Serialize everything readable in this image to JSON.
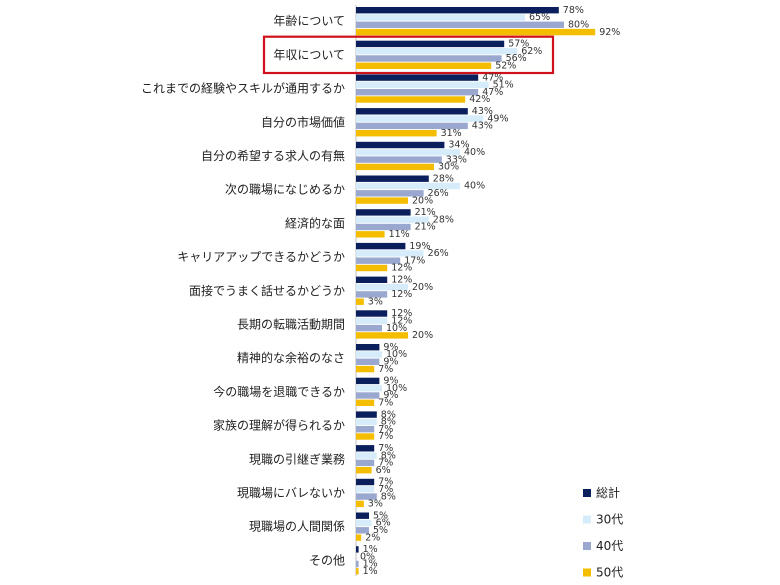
{
  "chart_data": {
    "type": "bar",
    "orientation": "horizontal",
    "title": "",
    "xlabel": "",
    "ylabel": "",
    "xlim": [
      0,
      100
    ],
    "grid": false,
    "legend_position": "bottom-right",
    "highlighted_category": "年収について",
    "highlight_color": "#d0101a",
    "categories": [
      "年齢について",
      "年収について",
      "これまでの経験やスキルが通用するか",
      "自分の市場価値",
      "自分の希望する求人の有無",
      "次の職場になじめるか",
      "経済的な面",
      "キャリアアップできるかどうか",
      "面接でうまく話せるかどうか",
      "長期の転職活動期間",
      "精神的な余裕のなさ",
      "今の職場を退職できるか",
      "家族の理解が得られるか",
      "現職の引継ぎ業務",
      "現職場にバレないか",
      "現職場の人間関係",
      "その他"
    ],
    "series": [
      {
        "name": "総計",
        "color": "#0b1f5c",
        "values": [
          78,
          57,
          47,
          43,
          34,
          28,
          21,
          19,
          12,
          12,
          9,
          9,
          8,
          7,
          7,
          5,
          1
        ]
      },
      {
        "name": "30代",
        "color": "#d6ecfa",
        "values": [
          65,
          62,
          51,
          49,
          40,
          40,
          28,
          26,
          20,
          12,
          10,
          10,
          8,
          8,
          7,
          6,
          0
        ]
      },
      {
        "name": "40代",
        "color": "#9aa7cf",
        "values": [
          80,
          56,
          47,
          43,
          33,
          26,
          21,
          17,
          12,
          10,
          9,
          9,
          7,
          7,
          8,
          5,
          1
        ]
      },
      {
        "name": "50代",
        "color": "#f5bd00",
        "values": [
          92,
          52,
          42,
          31,
          30,
          20,
          11,
          12,
          3,
          20,
          7,
          7,
          7,
          6,
          3,
          2,
          1
        ]
      }
    ],
    "value_suffix": "%"
  }
}
